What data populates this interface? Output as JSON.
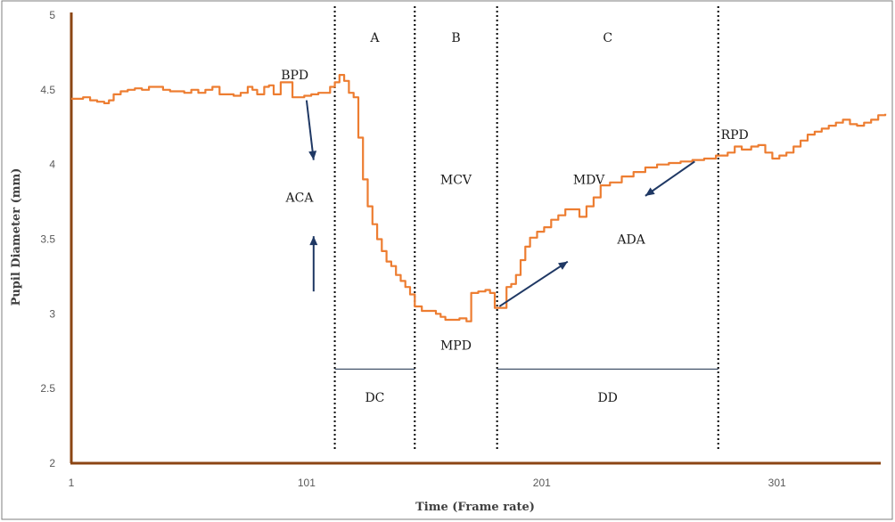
{
  "chart_data": {
    "type": "line",
    "title": "",
    "xlabel": "Time (Frame rate)",
    "ylabel": "Pupil Diameter (mm)",
    "xlim": [
      1,
      350
    ],
    "ylim": [
      2,
      5
    ],
    "x_ticks": [
      1,
      101,
      201,
      301
    ],
    "y_ticks": [
      2,
      2.5,
      3,
      3.5,
      4,
      4.5,
      5
    ],
    "grid": false,
    "legend": "none",
    "series": [
      {
        "color": "#ed7d31",
        "points": [
          [
            1,
            4.44
          ],
          [
            6,
            4.45
          ],
          [
            9,
            4.43
          ],
          [
            12,
            4.42
          ],
          [
            15,
            4.41
          ],
          [
            17,
            4.43
          ],
          [
            19,
            4.47
          ],
          [
            22,
            4.49
          ],
          [
            25,
            4.5
          ],
          [
            28,
            4.51
          ],
          [
            31,
            4.5
          ],
          [
            34,
            4.52
          ],
          [
            37,
            4.52
          ],
          [
            40,
            4.5
          ],
          [
            43,
            4.49
          ],
          [
            46,
            4.49
          ],
          [
            49,
            4.48
          ],
          [
            52,
            4.5
          ],
          [
            55,
            4.48
          ],
          [
            58,
            4.5
          ],
          [
            61,
            4.52
          ],
          [
            64,
            4.47
          ],
          [
            67,
            4.47
          ],
          [
            70,
            4.46
          ],
          [
            73,
            4.48
          ],
          [
            76,
            4.52
          ],
          [
            78,
            4.5
          ],
          [
            80,
            4.47
          ],
          [
            83,
            4.52
          ],
          [
            85,
            4.53
          ],
          [
            87,
            4.47
          ],
          [
            90,
            4.55
          ],
          [
            93,
            4.55
          ],
          [
            95,
            4.45
          ],
          [
            97,
            4.45
          ],
          [
            100,
            4.46
          ],
          [
            103,
            4.47
          ],
          [
            106,
            4.48
          ],
          [
            109,
            4.48
          ],
          [
            111,
            4.52
          ],
          [
            113,
            4.55
          ],
          [
            115,
            4.6
          ],
          [
            117,
            4.56
          ],
          [
            119,
            4.48
          ],
          [
            121,
            4.45
          ],
          [
            123,
            4.18
          ],
          [
            125,
            3.9
          ],
          [
            127,
            3.72
          ],
          [
            129,
            3.6
          ],
          [
            131,
            3.5
          ],
          [
            133,
            3.42
          ],
          [
            135,
            3.35
          ],
          [
            137,
            3.32
          ],
          [
            139,
            3.26
          ],
          [
            141,
            3.22
          ],
          [
            143,
            3.18
          ],
          [
            145,
            3.13
          ],
          [
            147,
            3.05
          ],
          [
            150,
            3.02
          ],
          [
            153,
            3.02
          ],
          [
            156,
            3.0
          ],
          [
            158,
            2.98
          ],
          [
            160,
            2.96
          ],
          [
            163,
            2.96
          ],
          [
            166,
            2.97
          ],
          [
            169,
            2.95
          ],
          [
            171,
            3.14
          ],
          [
            174,
            3.15
          ],
          [
            177,
            3.16
          ],
          [
            179,
            3.14
          ],
          [
            181,
            3.04
          ],
          [
            184,
            3.04
          ],
          [
            186,
            3.18
          ],
          [
            188,
            3.2
          ],
          [
            190,
            3.26
          ],
          [
            192,
            3.36
          ],
          [
            194,
            3.45
          ],
          [
            196,
            3.51
          ],
          [
            199,
            3.55
          ],
          [
            202,
            3.58
          ],
          [
            205,
            3.63
          ],
          [
            208,
            3.66
          ],
          [
            211,
            3.7
          ],
          [
            214,
            3.7
          ],
          [
            217,
            3.65
          ],
          [
            220,
            3.72
          ],
          [
            223,
            3.78
          ],
          [
            226,
            3.86
          ],
          [
            230,
            3.88
          ],
          [
            235,
            3.92
          ],
          [
            240,
            3.95
          ],
          [
            245,
            3.98
          ],
          [
            250,
            4.0
          ],
          [
            255,
            4.01
          ],
          [
            260,
            4.02
          ],
          [
            265,
            4.03
          ],
          [
            270,
            4.04
          ],
          [
            275,
            4.06
          ],
          [
            280,
            4.08
          ],
          [
            283,
            4.12
          ],
          [
            286,
            4.1
          ],
          [
            290,
            4.12
          ],
          [
            293,
            4.13
          ],
          [
            296,
            4.08
          ],
          [
            299,
            4.04
          ],
          [
            302,
            4.06
          ],
          [
            305,
            4.08
          ],
          [
            308,
            4.12
          ],
          [
            311,
            4.16
          ],
          [
            314,
            4.2
          ],
          [
            317,
            4.22
          ],
          [
            320,
            4.24
          ],
          [
            323,
            4.26
          ],
          [
            326,
            4.28
          ],
          [
            329,
            4.3
          ],
          [
            332,
            4.27
          ],
          [
            335,
            4.26
          ],
          [
            338,
            4.28
          ],
          [
            341,
            4.3
          ],
          [
            344,
            4.33
          ],
          [
            347,
            4.34
          ]
        ]
      }
    ],
    "phase_boundaries": [
      113,
      147,
      182,
      276
    ],
    "phase_labels": [
      {
        "text": "A",
        "x": 130,
        "y": 4.85
      },
      {
        "text": "B",
        "x": 164.5,
        "y": 4.85
      },
      {
        "text": "C",
        "x": 229,
        "y": 4.85
      }
    ],
    "annotations": [
      {
        "text": "BPD",
        "x": 96,
        "y": 4.6
      },
      {
        "text": "ACA",
        "x": 98,
        "y": 3.78
      },
      {
        "text": "MCV",
        "x": 164.5,
        "y": 3.9
      },
      {
        "text": "MPD",
        "x": 164.5,
        "y": 2.79
      },
      {
        "text": "MDV",
        "x": 221,
        "y": 3.9
      },
      {
        "text": "ADA",
        "x": 239,
        "y": 3.5
      },
      {
        "text": "RPD",
        "x": 283,
        "y": 4.2
      },
      {
        "text": "DC",
        "x": 130,
        "y": 2.44
      },
      {
        "text": "DD",
        "x": 229,
        "y": 2.44
      }
    ],
    "span_lines": [
      {
        "x1": 113,
        "x2": 147,
        "y": 2.63
      },
      {
        "x1": 182,
        "x2": 276,
        "y": 2.63
      }
    ],
    "arrows": [
      {
        "from": [
          101,
          4.43
        ],
        "to": [
          104,
          4.03
        ]
      },
      {
        "from": [
          104,
          3.15
        ],
        "to": [
          104,
          3.52
        ]
      },
      {
        "from": [
          183,
          3.05
        ],
        "to": [
          212,
          3.35
        ]
      },
      {
        "from": [
          266,
          4.02
        ],
        "to": [
          245,
          3.79
        ]
      }
    ]
  }
}
